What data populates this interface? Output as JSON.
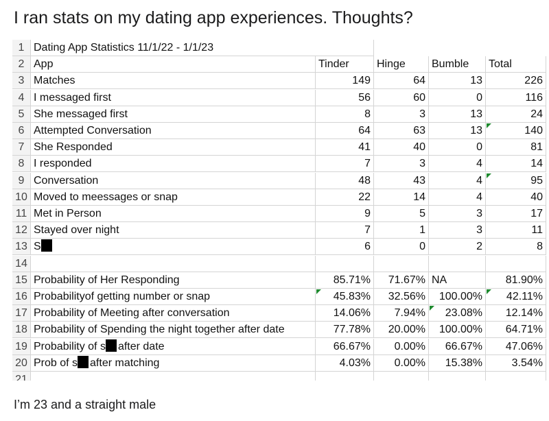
{
  "post": {
    "title": "I ran stats on my dating app experiences. Thoughts?",
    "body": "I’m 23 and a straight male"
  },
  "table": {
    "rows": [
      [
        "1",
        "Dating App Statistics 11/1/22 - 1/1/23",
        null,
        null,
        null,
        null
      ],
      [
        "2",
        "App",
        "Tinder",
        "Hinge",
        "Bumble",
        "Total"
      ],
      [
        "3",
        "Matches",
        "149",
        "64",
        "13",
        "226"
      ],
      [
        "4",
        "I messaged first",
        "56",
        "60",
        "0",
        "116"
      ],
      [
        "5",
        "She messaged first",
        "8",
        "3",
        "13",
        "24"
      ],
      [
        "6",
        "Attempted Conversation",
        "64",
        "63",
        "13",
        "140"
      ],
      [
        "7",
        "She Responded",
        "41",
        "40",
        "0",
        "81"
      ],
      [
        "8",
        "I responded",
        "7",
        "3",
        "4",
        "14"
      ],
      [
        "9",
        "Conversation",
        "48",
        "43",
        "4",
        "95"
      ],
      [
        "10",
        "Moved to meessages or snap",
        "22",
        "14",
        "4",
        "40"
      ],
      [
        "11",
        "Met in Person",
        "9",
        "5",
        "3",
        "17"
      ],
      [
        "12",
        "Stayed over night",
        "7",
        "1",
        "3",
        "11"
      ],
      [
        "13",
        {
          "parts": [
            "S"
          ]
        },
        "6",
        "0",
        "2",
        "8"
      ],
      [
        "14",
        null,
        null,
        null,
        null,
        null
      ],
      [
        "15",
        "Probability of Her Responding",
        "85.71%",
        "71.67%",
        "NA",
        "81.90%"
      ],
      [
        "16",
        "Probabilityof getting number or snap",
        "45.83%",
        "32.56%",
        "100.00%",
        "42.11%"
      ],
      [
        "17",
        "Probability of Meeting after conversation",
        "14.06%",
        "7.94%",
        "23.08%",
        "12.14%"
      ],
      [
        "18",
        "Probability of Spending the night together after date",
        "77.78%",
        "20.00%",
        "100.00%",
        "64.71%"
      ],
      [
        "19",
        {
          "parts": [
            "Probability of s",
            "after date"
          ]
        },
        "66.67%",
        "0.00%",
        "66.67%",
        "47.06%"
      ],
      [
        "20",
        {
          "parts": [
            "Prob of s",
            "after matching"
          ]
        },
        "4.03%",
        "0.00%",
        "15.38%",
        "3.54%"
      ],
      [
        "21",
        null,
        null,
        null,
        null,
        null
      ]
    ]
  }
}
